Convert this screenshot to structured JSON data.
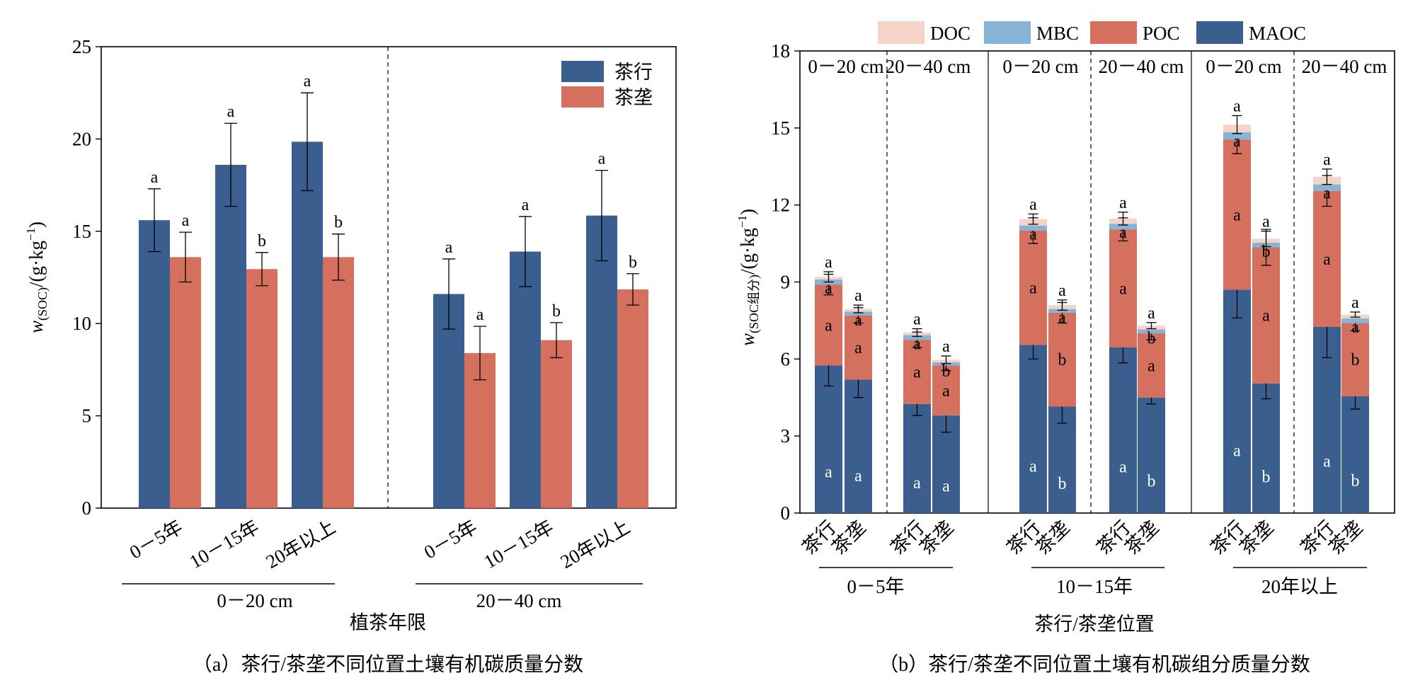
{
  "colors": {
    "row": "#3a5e8e",
    "ridge": "#d56f5e",
    "maoc": "#3a5e8e",
    "poc": "#d56f5e",
    "mbc": "#86b3d6",
    "doc": "#f5d3c6"
  },
  "chart_data": [
    {
      "type": "bar",
      "panel": "a",
      "caption": "（a）茶行/茶垄不同位置土壤有机碳质量分数",
      "xlabel": "植茶年限",
      "ylabel_main": "w",
      "ylabel_sub": "(SOC)",
      "ylabel_tail": "/(g·kg",
      "ylabel_exp": "−1",
      "ylabel_close": ")",
      "ylim": [
        0,
        25
      ],
      "yticks": [
        "0",
        "5",
        "10",
        "15",
        "20",
        "25"
      ],
      "legend": [
        "茶行",
        "茶垄"
      ],
      "legend_position": "top-right",
      "depth_groups": [
        "0－20 cm",
        "20－40 cm"
      ],
      "categories": [
        "0－5年",
        "10－15年",
        "20年以上",
        "0－5年",
        "10－15年",
        "20年以上"
      ],
      "series": [
        {
          "name": "茶行",
          "values": [
            15.6,
            18.6,
            19.85,
            11.6,
            13.9,
            15.85
          ],
          "errors": [
            1.7,
            2.25,
            2.65,
            1.9,
            1.9,
            2.45
          ],
          "labels": [
            "a",
            "a",
            "a",
            "a",
            "a",
            "a"
          ]
        },
        {
          "name": "茶垄",
          "values": [
            13.6,
            12.95,
            13.6,
            8.4,
            9.1,
            11.85
          ],
          "errors": [
            1.35,
            0.9,
            1.25,
            1.45,
            0.95,
            0.85
          ],
          "labels": [
            "a",
            "b",
            "b",
            "a",
            "b",
            "b"
          ]
        }
      ]
    },
    {
      "type": "bar",
      "stacked": true,
      "panel": "b",
      "caption": "（b）茶行/茶垄不同位置土壤有机碳组分质量分数",
      "xlabel": "茶行/茶垄位置",
      "ylabel_main": "w",
      "ylabel_sub": "(SOC组分)",
      "ylabel_tail": "/(g·kg",
      "ylabel_exp": "−1",
      "ylabel_close": ")",
      "ylim": [
        0,
        18
      ],
      "yticks": [
        "0",
        "3",
        "6",
        "9",
        "12",
        "15",
        "18"
      ],
      "legend": [
        "DOC",
        "MBC",
        "POC",
        "MAOC"
      ],
      "legend_position": "top",
      "age_groups": [
        "0－5年",
        "10－15年",
        "20年以上"
      ],
      "depth_labels": [
        "0－20 cm",
        "20－40 cm",
        "0－20 cm",
        "20－40 cm",
        "0－20 cm",
        "20－40 cm"
      ],
      "bar_labels": [
        "茶行",
        "茶垄",
        "茶行",
        "茶垄",
        "茶行",
        "茶垄",
        "茶行",
        "茶垄",
        "茶行",
        "茶垄",
        "茶行",
        "茶垄"
      ],
      "series": [
        {
          "name": "MAOC",
          "values": [
            5.75,
            5.2,
            4.25,
            3.8,
            6.55,
            4.15,
            6.45,
            4.5,
            8.7,
            5.05,
            7.25,
            4.55
          ],
          "errors": [
            0.8,
            0.7,
            0.45,
            0.65,
            0.55,
            0.65,
            0.6,
            0.25,
            1.1,
            0.6,
            1.2,
            0.5
          ],
          "labels": [
            "a",
            "a",
            "a",
            "a",
            "a",
            "b",
            "a",
            "b",
            "a",
            "b",
            "a",
            "b"
          ]
        },
        {
          "name": "POC",
          "values": [
            3.15,
            2.5,
            2.5,
            1.95,
            4.45,
            3.65,
            4.6,
            2.5,
            5.85,
            5.3,
            5.3,
            2.85
          ],
          "errors": [
            0.4,
            0.3,
            0.3,
            0.2,
            0.5,
            0.4,
            0.45,
            0.25,
            0.55,
            0.7,
            0.6,
            0.3
          ],
          "labels": [
            "a",
            "a",
            "a",
            "a",
            "a",
            "b",
            "a",
            "a",
            "a",
            "a",
            "a",
            "b"
          ]
        },
        {
          "name": "MBC",
          "values": [
            0.2,
            0.15,
            0.18,
            0.12,
            0.2,
            0.15,
            0.22,
            0.15,
            0.28,
            0.18,
            0.25,
            0.18
          ],
          "errors": [
            0.15,
            0.12,
            0.1,
            0.1,
            0.15,
            0.12,
            0.15,
            0.1,
            0.2,
            0.15,
            0.18,
            0.1
          ],
          "labels": [
            "a",
            "a",
            "a",
            "b",
            "a",
            "a",
            "a",
            "b",
            "a",
            "b",
            "a",
            "a"
          ]
        },
        {
          "name": "DOC",
          "values": [
            0.1,
            0.1,
            0.1,
            0.1,
            0.25,
            0.15,
            0.2,
            0.15,
            0.3,
            0.15,
            0.3,
            0.15
          ],
          "errors": [
            0.2,
            0.15,
            0.15,
            0.15,
            0.2,
            0.2,
            0.25,
            0.12,
            0.35,
            0.3,
            0.3,
            0.1
          ],
          "labels": [
            "a",
            "a",
            "a",
            "a",
            "a",
            "a",
            "a",
            "a",
            "a",
            "a",
            "a",
            "a"
          ]
        }
      ]
    }
  ]
}
